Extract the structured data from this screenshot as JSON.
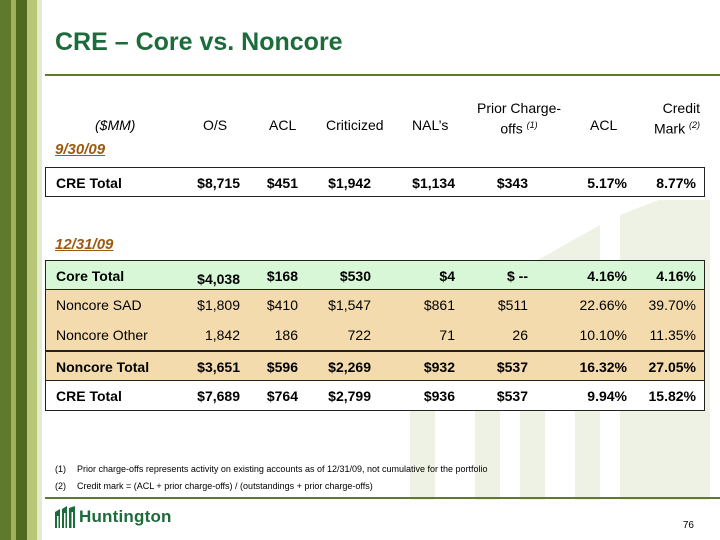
{
  "title": "CRE – Core vs. Noncore",
  "columns": {
    "unit": "($MM)",
    "os": "O/S",
    "acl": "ACL",
    "criticized": "Criticized",
    "nals": "NAL’s",
    "prior_line1": "Prior Charge-",
    "prior_line2": "offs",
    "prior_note": "(1)",
    "acl_pct": "ACL",
    "credit_line1": "Credit",
    "credit_line2": "Mark",
    "credit_note": "(2)"
  },
  "section1": {
    "date": "9/30/09",
    "rows": [
      {
        "label": "CRE Total",
        "os": "$8,715",
        "acl": "$451",
        "criticized": "$1,942",
        "nals": "$1,134",
        "prior": "$343",
        "acl_pct": "5.17%",
        "credit": "8.77%"
      }
    ]
  },
  "section2": {
    "date": "12/31/09",
    "rows": [
      {
        "label": "Core Total",
        "os": "$4,038",
        "acl": "$168",
        "criticized": "$530",
        "nals": "$4",
        "prior": "$ --",
        "acl_pct": "4.16%",
        "credit": "4.16%"
      },
      {
        "label": "Noncore SAD",
        "os": "$1,809",
        "acl": "$410",
        "criticized": "$1,547",
        "nals": "$861",
        "prior": "$511",
        "acl_pct": "22.66%",
        "credit": "39.70%"
      },
      {
        "label": "Noncore Other",
        "os": "1,842",
        "acl": "186",
        "criticized": "722",
        "nals": "71",
        "prior": "26",
        "acl_pct": "10.10%",
        "credit": "11.35%"
      },
      {
        "label": "Noncore Total",
        "os": "$3,651",
        "acl": "$596",
        "criticized": "$2,269",
        "nals": "$932",
        "prior": "$537",
        "acl_pct": "16.32%",
        "credit": "27.05%"
      },
      {
        "label": "CRE Total",
        "os": "$7,689",
        "acl": "$764",
        "criticized": "$2,799",
        "nals": "$936",
        "prior": "$537",
        "acl_pct": "9.94%",
        "credit": "15.82%"
      }
    ]
  },
  "footnotes": [
    {
      "num": "(1)",
      "text": "Prior charge-offs represents activity on existing accounts as of 12/31/09, not cumulative for the portfolio"
    },
    {
      "num": "(2)",
      "text": "Credit mark = (ACL + prior charge-offs) / (outstandings + prior charge-offs)"
    }
  ],
  "logo": {
    "text": "Huntington",
    "icon": "huntington-logo-icon"
  },
  "page_number": "76",
  "colors": {
    "brand_green": "#1c6b3a",
    "core_row_bg": "#d7f7d7",
    "noncore_row_bg": "#f4dbae",
    "section_date": "#9b5a12"
  }
}
